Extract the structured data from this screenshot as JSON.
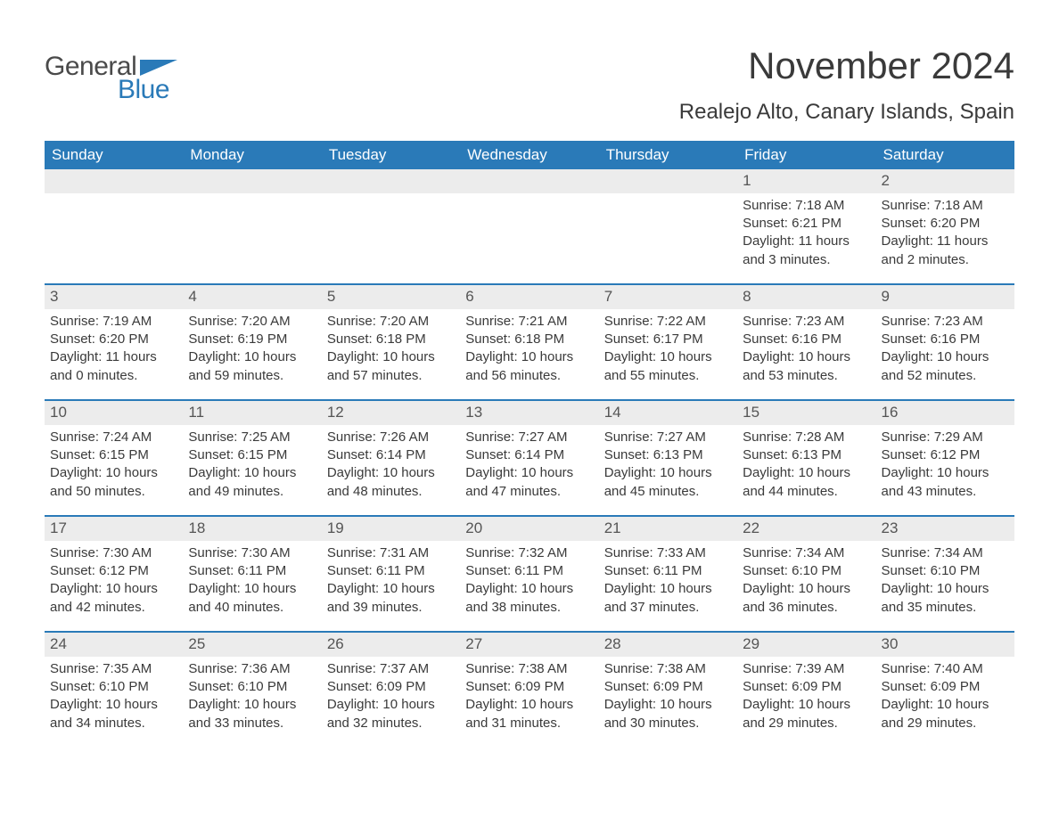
{
  "logo": {
    "text_general": "General",
    "text_blue": "Blue",
    "flag_color": "#2a7ab8"
  },
  "header": {
    "month_title": "November 2024",
    "location": "Realejo Alto, Canary Islands, Spain",
    "title_fontsize": 42,
    "location_fontsize": 24,
    "title_color": "#3a3a3a"
  },
  "calendar": {
    "header_bg": "#2a7ab8",
    "header_fg": "#ffffff",
    "row_divider_color": "#2a7ab8",
    "daynum_bg": "#ececec",
    "text_color": "#3a3a3a",
    "cell_fontsize": 15,
    "daynames": [
      "Sunday",
      "Monday",
      "Tuesday",
      "Wednesday",
      "Thursday",
      "Friday",
      "Saturday"
    ],
    "weeks": [
      [
        {
          "day": "",
          "sunrise": "",
          "sunset": "",
          "daylight": ""
        },
        {
          "day": "",
          "sunrise": "",
          "sunset": "",
          "daylight": ""
        },
        {
          "day": "",
          "sunrise": "",
          "sunset": "",
          "daylight": ""
        },
        {
          "day": "",
          "sunrise": "",
          "sunset": "",
          "daylight": ""
        },
        {
          "day": "",
          "sunrise": "",
          "sunset": "",
          "daylight": ""
        },
        {
          "day": "1",
          "sunrise": "Sunrise: 7:18 AM",
          "sunset": "Sunset: 6:21 PM",
          "daylight": "Daylight: 11 hours and 3 minutes."
        },
        {
          "day": "2",
          "sunrise": "Sunrise: 7:18 AM",
          "sunset": "Sunset: 6:20 PM",
          "daylight": "Daylight: 11 hours and 2 minutes."
        }
      ],
      [
        {
          "day": "3",
          "sunrise": "Sunrise: 7:19 AM",
          "sunset": "Sunset: 6:20 PM",
          "daylight": "Daylight: 11 hours and 0 minutes."
        },
        {
          "day": "4",
          "sunrise": "Sunrise: 7:20 AM",
          "sunset": "Sunset: 6:19 PM",
          "daylight": "Daylight: 10 hours and 59 minutes."
        },
        {
          "day": "5",
          "sunrise": "Sunrise: 7:20 AM",
          "sunset": "Sunset: 6:18 PM",
          "daylight": "Daylight: 10 hours and 57 minutes."
        },
        {
          "day": "6",
          "sunrise": "Sunrise: 7:21 AM",
          "sunset": "Sunset: 6:18 PM",
          "daylight": "Daylight: 10 hours and 56 minutes."
        },
        {
          "day": "7",
          "sunrise": "Sunrise: 7:22 AM",
          "sunset": "Sunset: 6:17 PM",
          "daylight": "Daylight: 10 hours and 55 minutes."
        },
        {
          "day": "8",
          "sunrise": "Sunrise: 7:23 AM",
          "sunset": "Sunset: 6:16 PM",
          "daylight": "Daylight: 10 hours and 53 minutes."
        },
        {
          "day": "9",
          "sunrise": "Sunrise: 7:23 AM",
          "sunset": "Sunset: 6:16 PM",
          "daylight": "Daylight: 10 hours and 52 minutes."
        }
      ],
      [
        {
          "day": "10",
          "sunrise": "Sunrise: 7:24 AM",
          "sunset": "Sunset: 6:15 PM",
          "daylight": "Daylight: 10 hours and 50 minutes."
        },
        {
          "day": "11",
          "sunrise": "Sunrise: 7:25 AM",
          "sunset": "Sunset: 6:15 PM",
          "daylight": "Daylight: 10 hours and 49 minutes."
        },
        {
          "day": "12",
          "sunrise": "Sunrise: 7:26 AM",
          "sunset": "Sunset: 6:14 PM",
          "daylight": "Daylight: 10 hours and 48 minutes."
        },
        {
          "day": "13",
          "sunrise": "Sunrise: 7:27 AM",
          "sunset": "Sunset: 6:14 PM",
          "daylight": "Daylight: 10 hours and 47 minutes."
        },
        {
          "day": "14",
          "sunrise": "Sunrise: 7:27 AM",
          "sunset": "Sunset: 6:13 PM",
          "daylight": "Daylight: 10 hours and 45 minutes."
        },
        {
          "day": "15",
          "sunrise": "Sunrise: 7:28 AM",
          "sunset": "Sunset: 6:13 PM",
          "daylight": "Daylight: 10 hours and 44 minutes."
        },
        {
          "day": "16",
          "sunrise": "Sunrise: 7:29 AM",
          "sunset": "Sunset: 6:12 PM",
          "daylight": "Daylight: 10 hours and 43 minutes."
        }
      ],
      [
        {
          "day": "17",
          "sunrise": "Sunrise: 7:30 AM",
          "sunset": "Sunset: 6:12 PM",
          "daylight": "Daylight: 10 hours and 42 minutes."
        },
        {
          "day": "18",
          "sunrise": "Sunrise: 7:30 AM",
          "sunset": "Sunset: 6:11 PM",
          "daylight": "Daylight: 10 hours and 40 minutes."
        },
        {
          "day": "19",
          "sunrise": "Sunrise: 7:31 AM",
          "sunset": "Sunset: 6:11 PM",
          "daylight": "Daylight: 10 hours and 39 minutes."
        },
        {
          "day": "20",
          "sunrise": "Sunrise: 7:32 AM",
          "sunset": "Sunset: 6:11 PM",
          "daylight": "Daylight: 10 hours and 38 minutes."
        },
        {
          "day": "21",
          "sunrise": "Sunrise: 7:33 AM",
          "sunset": "Sunset: 6:11 PM",
          "daylight": "Daylight: 10 hours and 37 minutes."
        },
        {
          "day": "22",
          "sunrise": "Sunrise: 7:34 AM",
          "sunset": "Sunset: 6:10 PM",
          "daylight": "Daylight: 10 hours and 36 minutes."
        },
        {
          "day": "23",
          "sunrise": "Sunrise: 7:34 AM",
          "sunset": "Sunset: 6:10 PM",
          "daylight": "Daylight: 10 hours and 35 minutes."
        }
      ],
      [
        {
          "day": "24",
          "sunrise": "Sunrise: 7:35 AM",
          "sunset": "Sunset: 6:10 PM",
          "daylight": "Daylight: 10 hours and 34 minutes."
        },
        {
          "day": "25",
          "sunrise": "Sunrise: 7:36 AM",
          "sunset": "Sunset: 6:10 PM",
          "daylight": "Daylight: 10 hours and 33 minutes."
        },
        {
          "day": "26",
          "sunrise": "Sunrise: 7:37 AM",
          "sunset": "Sunset: 6:09 PM",
          "daylight": "Daylight: 10 hours and 32 minutes."
        },
        {
          "day": "27",
          "sunrise": "Sunrise: 7:38 AM",
          "sunset": "Sunset: 6:09 PM",
          "daylight": "Daylight: 10 hours and 31 minutes."
        },
        {
          "day": "28",
          "sunrise": "Sunrise: 7:38 AM",
          "sunset": "Sunset: 6:09 PM",
          "daylight": "Daylight: 10 hours and 30 minutes."
        },
        {
          "day": "29",
          "sunrise": "Sunrise: 7:39 AM",
          "sunset": "Sunset: 6:09 PM",
          "daylight": "Daylight: 10 hours and 29 minutes."
        },
        {
          "day": "30",
          "sunrise": "Sunrise: 7:40 AM",
          "sunset": "Sunset: 6:09 PM",
          "daylight": "Daylight: 10 hours and 29 minutes."
        }
      ]
    ]
  }
}
